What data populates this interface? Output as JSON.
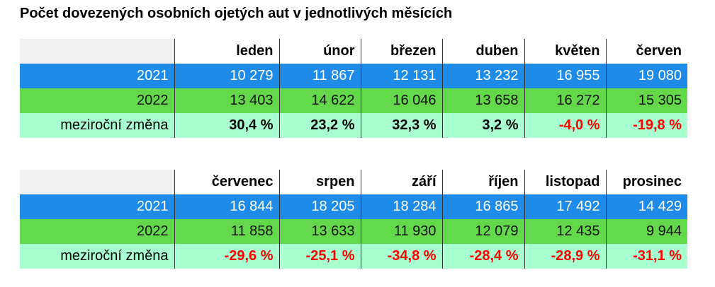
{
  "title": "Počet dovezených osobních ojetých aut v jednotlivých měsících",
  "tables": [
    {
      "months": [
        "leden",
        "únor",
        "březen",
        "duben",
        "květen",
        "červen"
      ],
      "rows": [
        {
          "label": "2021",
          "cells": [
            "10 279",
            "11 867",
            "12 131",
            "13 232",
            "16 955",
            "19 080"
          ]
        },
        {
          "label": "2022",
          "cells": [
            "13 403",
            "14 622",
            "16 046",
            "13 658",
            "16 272",
            "15 305"
          ]
        },
        {
          "label": "meziroční změna",
          "cells": [
            "30,4 %",
            "23,2 %",
            "32,3 %",
            "3,2 %",
            "-4,0 %",
            "-19,8 %"
          ]
        }
      ]
    },
    {
      "months": [
        "červenec",
        "srpen",
        "září",
        "říjen",
        "listopad",
        "prosinec"
      ],
      "rows": [
        {
          "label": "2021",
          "cells": [
            "16 844",
            "18 205",
            "18 284",
            "16 865",
            "17 492",
            "14 429"
          ]
        },
        {
          "label": "2022",
          "cells": [
            "11 858",
            "13 633",
            "11 930",
            "12 079",
            "12 435",
            "9 944"
          ]
        },
        {
          "label": "meziroční změna",
          "cells": [
            "-29,6 %",
            "-25,1 %",
            "-34,8 %",
            "-28,4 %",
            "-28,9 %",
            "-31,1 %"
          ]
        }
      ]
    }
  ]
}
